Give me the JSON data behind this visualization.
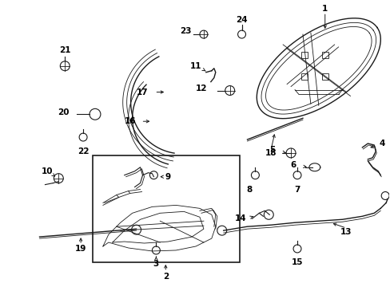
{
  "bg_color": "#ffffff",
  "line_color": "#1a1a1a",
  "label_color": "#000000",
  "label_fs": 7.5
}
